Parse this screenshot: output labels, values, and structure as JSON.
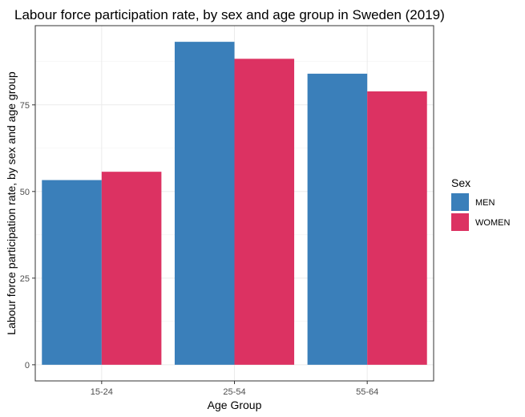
{
  "chart_data": {
    "type": "bar",
    "title": "Labour force participation rate, by sex and age group in Sweden (2019)",
    "xlabel": "Age Group",
    "ylabel": "Labour force participation rate, by sex and age group",
    "categories": [
      "15-24",
      "25-54",
      "55-64"
    ],
    "series": [
      {
        "name": "MEN",
        "color": "#3a7fba",
        "values": [
          53.3,
          93.2,
          84.0
        ]
      },
      {
        "name": "WOMEN",
        "color": "#dc3262",
        "values": [
          55.7,
          88.3,
          78.9
        ]
      }
    ],
    "yticks": [
      0,
      25,
      50,
      75
    ],
    "ylim": [
      -4.66,
      97.86
    ],
    "grid": true,
    "legend": {
      "title": "Sex",
      "position": "right"
    }
  }
}
